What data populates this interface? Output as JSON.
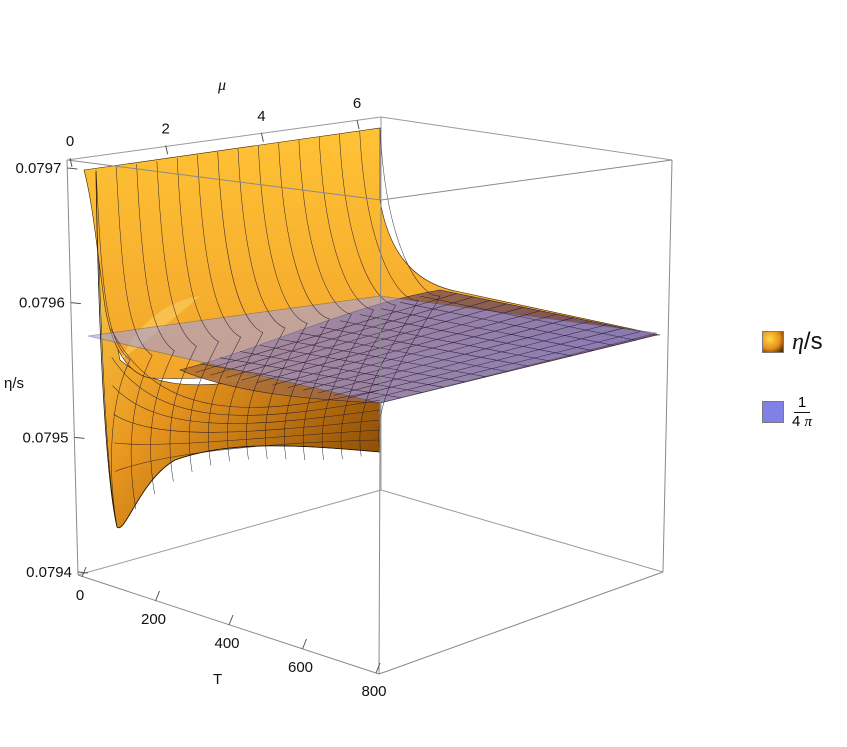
{
  "chart_data": {
    "type": "surface3d",
    "axes": {
      "x": {
        "label": "T",
        "range": [
          0,
          800
        ],
        "ticks": [
          "0",
          "200",
          "400",
          "600",
          "800"
        ]
      },
      "y": {
        "label": "μ",
        "range": [
          0,
          6.5
        ],
        "ticks": [
          "0",
          "2",
          "4",
          "6"
        ]
      },
      "z": {
        "label": "η/s",
        "range": [
          0.0794,
          0.0797
        ],
        "ticks": [
          "0.0794",
          "0.0795",
          "0.0796",
          "0.0797"
        ]
      }
    },
    "series": [
      {
        "name": "η/s",
        "kind": "surface",
        "color_top": "#ffd24a",
        "color_bottom": "#8a4a00",
        "profile_T": [
          1,
          3,
          5,
          8,
          12,
          20,
          30,
          50,
          80,
          150,
          300,
          500,
          800
        ],
        "profile_eta_over_s_mu0": [
          0.0797,
          0.07968,
          0.07962,
          0.0795,
          0.07942,
          0.07943,
          0.07946,
          0.07949,
          0.07951,
          0.07953,
          0.07955,
          0.07956,
          0.07957
        ]
      },
      {
        "name": "1/(4π)",
        "kind": "plane",
        "value": 0.0795775,
        "color": "#8080e6"
      }
    ],
    "legend": {
      "position": "right",
      "items": [
        {
          "label_main": "η",
          "label_rest": "/s",
          "color": "#f2a52a"
        },
        {
          "label_num": "1",
          "label_den_a": "4",
          "label_den_b": "π",
          "color": "#8080e6"
        }
      ]
    }
  }
}
